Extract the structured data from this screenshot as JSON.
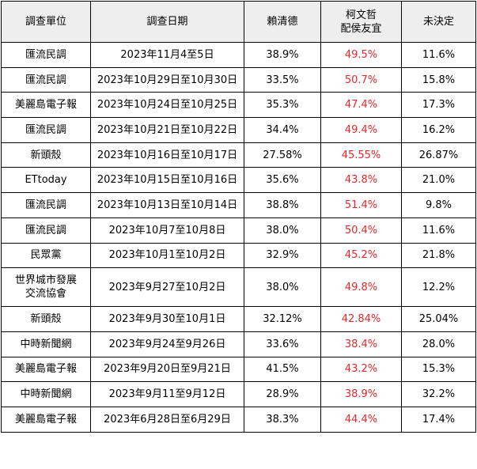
{
  "headers": {
    "org": "調查單位",
    "date": "調查日期",
    "lai": "賴清德",
    "ko_line1": "柯文哲",
    "ko_line2": "配侯友宜",
    "undecided": "未決定"
  },
  "rows": [
    {
      "org": "匯流民調",
      "date": "2023年11月4至5日",
      "lai": "38.9%",
      "ko": "49.5%",
      "undecided": "11.6%"
    },
    {
      "org": "匯流民調",
      "date": "2023年10月29日至10月30日",
      "lai": "33.5%",
      "ko": "50.7%",
      "undecided": "15.8%"
    },
    {
      "org": "美麗島電子報",
      "date": "2023年10月24日至10月25日",
      "lai": "35.3%",
      "ko": "47.4%",
      "undecided": "17.3%"
    },
    {
      "org": "匯流民調",
      "date": "2023年10月21日至10月22日",
      "lai": "34.4%",
      "ko": "49.4%",
      "undecided": "16.2%"
    },
    {
      "org": "新頭殼",
      "date": "2023年10月16日至10月17日",
      "lai": "27.58%",
      "ko": "45.55%",
      "undecided": "26.87%"
    },
    {
      "org": "ETtoday",
      "date": "2023年10月15日至10月16日",
      "lai": "35.6%",
      "ko": "43.8%",
      "undecided": "21.0%"
    },
    {
      "org": "匯流民調",
      "date": "2023年10月13日至10月14日",
      "lai": "38.8%",
      "ko": "51.4%",
      "undecided": "9.8%"
    },
    {
      "org": "匯流民調",
      "date": "2023年10月7至10月8日",
      "lai": "38.0%",
      "ko": "50.4%",
      "undecided": "11.6%"
    },
    {
      "org": "民眾黨",
      "date": "2023年10月1至10月2日",
      "lai": "32.9%",
      "ko": "45.2%",
      "undecided": "21.8%"
    },
    {
      "org_line1": "世界城市發展",
      "org_line2": "交流協會",
      "date": "2023年9月27至10月2日",
      "lai": "38.0%",
      "ko": "49.8%",
      "undecided": "12.2%"
    },
    {
      "org": "新頭殼",
      "date": "2023年9月30至10月1日",
      "lai": "32.12%",
      "ko": "42.84%",
      "undecided": "25.04%"
    },
    {
      "org": "中時新聞網",
      "date": "2023年9月24至9月26日",
      "lai": "33.6%",
      "ko": "38.4%",
      "undecided": "28.0%"
    },
    {
      "org": "美麗島電子報",
      "date": "2023年9月20日至9月21日",
      "lai": "41.5%",
      "ko": "43.2%",
      "undecided": "15.3%"
    },
    {
      "org": "中時新聞網",
      "date": "2023年9月11至9月12日",
      "lai": "28.9%",
      "ko": "38.9%",
      "undecided": "32.2%"
    },
    {
      "org": "美麗島電子報",
      "date": "2023年6月28日至6月29日",
      "lai": "38.3%",
      "ko": "44.4%",
      "undecided": "17.4%"
    }
  ],
  "colors": {
    "header_bg": "#eeeeee",
    "highlight": "#e8262b",
    "border": "#000000"
  }
}
